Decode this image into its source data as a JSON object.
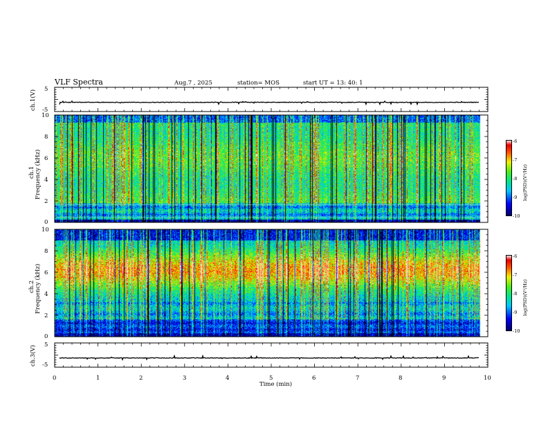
{
  "header": {
    "title": "VLF Spectra",
    "date": "Aug.7  , 2025",
    "station": "station= MOS",
    "start": "start  UT  =   13: 40: 1"
  },
  "chart_data": [
    {
      "type": "line",
      "name": "ch1-waveform",
      "ylabel": "ch.1(V)",
      "ylim": [
        -5,
        5
      ],
      "yticks": [
        "5",
        "-5"
      ],
      "baseline": -1.2,
      "x_range": [
        0,
        9.8
      ]
    },
    {
      "type": "heatmap",
      "name": "ch1-spectrogram",
      "ylabel": "ch.1",
      "ylabel2": "Frequency (kHz)",
      "ylim": [
        0,
        10
      ],
      "yticks": [
        "0",
        "2",
        "4",
        "6",
        "8",
        "10"
      ],
      "colorbar": {
        "label": "log(PSD)(V²/Hz)",
        "ticks": [
          "-6",
          "-7",
          "-8",
          "-9",
          "-10"
        ],
        "range": [
          -10,
          -6
        ]
      }
    },
    {
      "type": "heatmap",
      "name": "ch2-spectrogram",
      "ylabel": "ch.2",
      "ylabel2": "Frequency (kHz)",
      "ylim": [
        0,
        10
      ],
      "yticks": [
        "0",
        "2",
        "4",
        "6",
        "8",
        "10"
      ],
      "colorbar": {
        "label": "log(PSD)(V²/Hz)",
        "ticks": [
          "-6",
          "-7",
          "-8",
          "-9",
          "-10"
        ],
        "range": [
          -10,
          -6
        ]
      }
    },
    {
      "type": "line",
      "name": "ch3-waveform",
      "ylabel": "ch.3(V)",
      "ylim": [
        -5,
        5
      ],
      "yticks": [
        "5",
        "-5"
      ],
      "baseline": -1.2,
      "x_range": [
        0,
        9.8
      ]
    }
  ],
  "xaxis": {
    "label": "Time  (min)",
    "xlim": [
      0,
      10
    ],
    "ticks": [
      "0",
      "1",
      "2",
      "3",
      "4",
      "5",
      "6",
      "7",
      "8",
      "9",
      "10"
    ]
  }
}
